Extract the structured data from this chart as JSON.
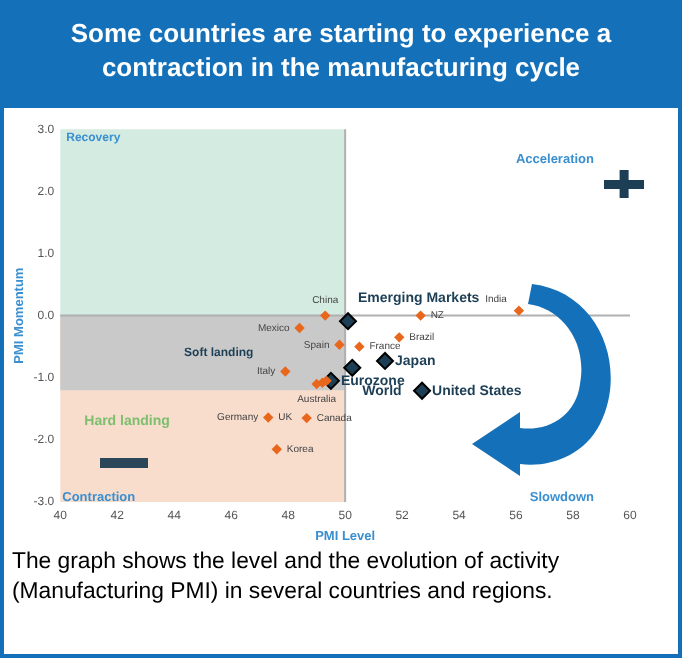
{
  "chart_data": {
    "type": "scatter",
    "title": "Some countries are starting to experience a contraction in the manufacturing cycle",
    "xlabel": "PMI Level",
    "ylabel": "PMI Momentum",
    "xlim": [
      40,
      60
    ],
    "xticks": [
      40,
      42,
      44,
      46,
      48,
      50,
      52,
      54,
      56,
      58,
      60
    ],
    "ylim": [
      -3,
      3
    ],
    "yticks": [
      {
        "value": -3,
        "label": "-3.0"
      },
      {
        "value": -2,
        "label": "-2.0"
      },
      {
        "value": -1,
        "label": "-1.0"
      },
      {
        "value": 0,
        "label": "0.0"
      },
      {
        "value": 1,
        "label": "1.0"
      },
      {
        "value": 2,
        "label": "2.0"
      },
      {
        "value": 3,
        "label": "3.0"
      }
    ],
    "grid": false,
    "legend": false,
    "marker": "diamond",
    "series": [
      {
        "color": "#e8671c",
        "x": [
          49.3,
          48.4,
          49.8,
          47.9,
          49.0,
          49.2,
          49.35,
          47.3,
          48.65,
          47.6,
          50.5,
          51.9,
          52.65,
          56.1
        ],
        "values": [
          0.0,
          -0.2,
          -0.47,
          -0.9,
          -1.1,
          -1.08,
          -1.05,
          -1.64,
          -1.65,
          -2.15,
          -0.5,
          -0.35,
          0.0,
          0.08
        ]
      },
      {
        "color": "#1d3f55",
        "x": [
          50.1,
          50.25,
          49.5,
          51.4,
          52.7
        ],
        "values": [
          -0.09,
          -0.84,
          -1.05,
          -0.73,
          -1.21
        ]
      }
    ],
    "ref_lines": [
      {
        "axis": "x",
        "value": 50,
        "color": "#b0b0b0"
      },
      {
        "axis": "y",
        "value": 0,
        "color": "#b0b0b0"
      }
    ],
    "bands": [
      {
        "axis": "y",
        "from": 0,
        "to": 3,
        "label": "Recovery",
        "color": "#d4ebe2"
      },
      {
        "axis": "y",
        "from": -3,
        "to": 0,
        "label": "Hard landing",
        "color": "#f8dccc"
      },
      {
        "axis": "y",
        "from": -1.2,
        "to": 0,
        "label": "Soft landing",
        "color": "#c9c9c9"
      }
    ],
    "annotations": [
      "Acceleration",
      "Slowdown",
      "Contraction",
      "The graph shows the level and the evolution of activity (Manufacturing PMI) in several countries and regions.",
      {
        "text": "China",
        "x": 49.3,
        "y": 0.0
      },
      {
        "text": "Mexico",
        "x": 48.4,
        "y": -0.2
      },
      {
        "text": "Spain",
        "x": 49.8,
        "y": -0.47
      },
      {
        "text": "Italy",
        "x": 47.9,
        "y": -0.9
      },
      {
        "text": "Australia",
        "x": 49.0,
        "y": -1.1
      },
      {
        "text": "Germany",
        "x": 47.3,
        "y": -1.64
      },
      {
        "text": "UK",
        "x": 47.3,
        "y": -1.64
      },
      {
        "text": "Canada",
        "x": 48.65,
        "y": -1.65
      },
      {
        "text": "Korea",
        "x": 47.6,
        "y": -2.15
      },
      {
        "text": "France",
        "x": 50.5,
        "y": -0.5
      },
      {
        "text": "Brazil",
        "x": 51.9,
        "y": -0.35
      },
      {
        "text": "NZ",
        "x": 52.65,
        "y": 0.0
      },
      {
        "text": "India",
        "x": 56.1,
        "y": 0.08
      },
      {
        "text": "Emerging Markets",
        "x": 50.1,
        "y": -0.09
      },
      {
        "text": "World",
        "x": 50.25,
        "y": -0.84
      },
      {
        "text": "Eurozone",
        "x": 49.5,
        "y": -1.05
      },
      {
        "text": "Japan",
        "x": 51.4,
        "y": -0.73
      },
      {
        "text": "United States",
        "x": 52.7,
        "y": -1.21
      }
    ]
  }
}
